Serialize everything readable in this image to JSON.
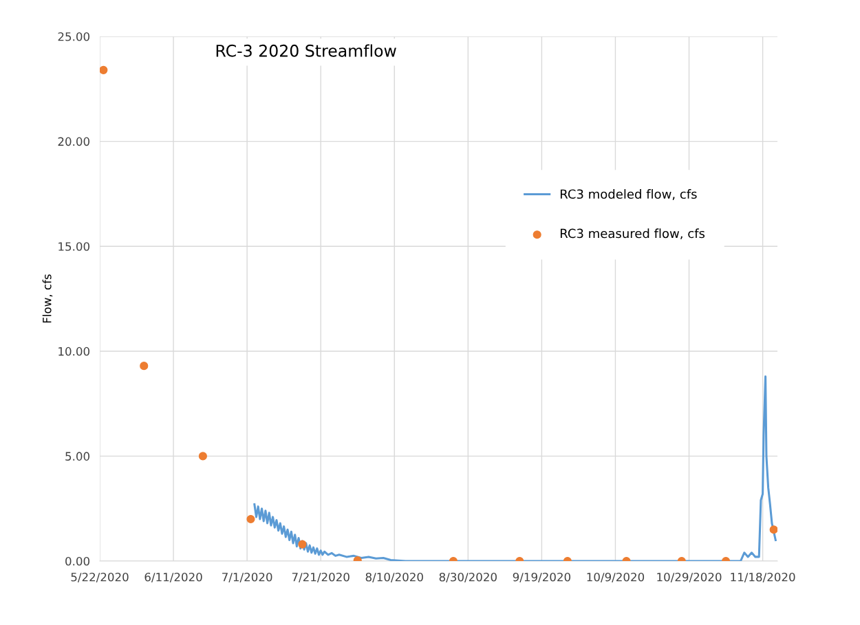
{
  "chart_data": {
    "type": "line",
    "title": "RC-3 2020 Streamflow",
    "ylabel": "Flow, cfs",
    "xlim": [
      "2020-05-22",
      "2020-11-22"
    ],
    "xticks": [
      {
        "value": "2020-05-22",
        "label": "5/22/2020"
      },
      {
        "value": "2020-06-11",
        "label": "6/11/2020"
      },
      {
        "value": "2020-07-01",
        "label": "7/1/2020"
      },
      {
        "value": "2020-07-21",
        "label": "7/21/2020"
      },
      {
        "value": "2020-08-10",
        "label": "8/10/2020"
      },
      {
        "value": "2020-08-30",
        "label": "8/30/2020"
      },
      {
        "value": "2020-09-19",
        "label": "9/19/2020"
      },
      {
        "value": "2020-10-09",
        "label": "10/9/2020"
      },
      {
        "value": "2020-10-29",
        "label": "10/29/2020"
      },
      {
        "value": "2020-11-18",
        "label": "11/18/2020"
      }
    ],
    "ylim": [
      0,
      25
    ],
    "yticks": [
      {
        "value": 0,
        "label": "0.00"
      },
      {
        "value": 5,
        "label": "5.00"
      },
      {
        "value": 10,
        "label": "10.00"
      },
      {
        "value": 15,
        "label": "15.00"
      },
      {
        "value": 20,
        "label": "20.00"
      },
      {
        "value": 25,
        "label": "25.00"
      }
    ],
    "grid": true,
    "legend": "right",
    "series": [
      {
        "name": "RC3 modeled flow, cfs",
        "color": "#5b9bd5",
        "marker": "none",
        "line_style": "solid",
        "x": [
          "2020-07-03",
          "2020-07-03T12:00",
          "2020-07-04",
          "2020-07-04T12:00",
          "2020-07-05",
          "2020-07-05T12:00",
          "2020-07-06",
          "2020-07-06T12:00",
          "2020-07-07",
          "2020-07-07T12:00",
          "2020-07-08",
          "2020-07-08T12:00",
          "2020-07-09",
          "2020-07-09T12:00",
          "2020-07-10",
          "2020-07-10T12:00",
          "2020-07-11",
          "2020-07-11T12:00",
          "2020-07-12",
          "2020-07-12T12:00",
          "2020-07-13",
          "2020-07-13T12:00",
          "2020-07-14",
          "2020-07-14T12:00",
          "2020-07-15",
          "2020-07-15T12:00",
          "2020-07-16",
          "2020-07-16T12:00",
          "2020-07-17",
          "2020-07-17T12:00",
          "2020-07-18",
          "2020-07-18T12:00",
          "2020-07-19",
          "2020-07-19T12:00",
          "2020-07-20",
          "2020-07-20T12:00",
          "2020-07-21",
          "2020-07-21T12:00",
          "2020-07-22",
          "2020-07-23",
          "2020-07-24",
          "2020-07-25",
          "2020-07-26",
          "2020-07-28",
          "2020-07-30",
          "2020-08-01",
          "2020-08-03",
          "2020-08-05",
          "2020-08-07",
          "2020-08-09",
          "2020-08-13",
          "2020-11-12",
          "2020-11-13",
          "2020-11-14",
          "2020-11-15",
          "2020-11-16",
          "2020-11-17",
          "2020-11-17T12:00",
          "2020-11-18",
          "2020-11-18T06:00",
          "2020-11-18T18:00",
          "2020-11-19",
          "2020-11-19T12:00",
          "2020-11-20",
          "2020-11-20T12:00",
          "2020-11-21T12:00"
        ],
        "values": [
          2.7,
          2.1,
          2.6,
          2.0,
          2.5,
          1.9,
          2.4,
          1.8,
          2.3,
          1.7,
          2.1,
          1.6,
          1.95,
          1.45,
          1.8,
          1.3,
          1.65,
          1.15,
          1.5,
          1.0,
          1.4,
          0.85,
          1.25,
          0.7,
          1.1,
          0.6,
          0.95,
          0.55,
          0.85,
          0.45,
          0.75,
          0.4,
          0.65,
          0.35,
          0.6,
          0.3,
          0.5,
          0.3,
          0.45,
          0.3,
          0.38,
          0.25,
          0.3,
          0.2,
          0.25,
          0.15,
          0.2,
          0.12,
          0.15,
          0.05,
          0.0,
          0.0,
          0.4,
          0.2,
          0.4,
          0.2,
          0.2,
          2.9,
          3.2,
          6.0,
          8.8,
          5.0,
          3.5,
          2.7,
          1.8,
          1.0
        ]
      },
      {
        "name": "RC3 measured flow, cfs",
        "type": "scatter",
        "color": "#ed7d31",
        "marker": "circle",
        "x": [
          "2020-05-23",
          "2020-06-03",
          "2020-06-19",
          "2020-07-02",
          "2020-07-16",
          "2020-07-31",
          "2020-08-26",
          "2020-09-13",
          "2020-09-26",
          "2020-10-12",
          "2020-10-27",
          "2020-11-08",
          "2020-11-21"
        ],
        "values": [
          23.4,
          9.3,
          5.0,
          2.0,
          0.8,
          0.03,
          0.0,
          0.0,
          0.0,
          0.0,
          0.0,
          0.0,
          1.5
        ]
      }
    ]
  }
}
